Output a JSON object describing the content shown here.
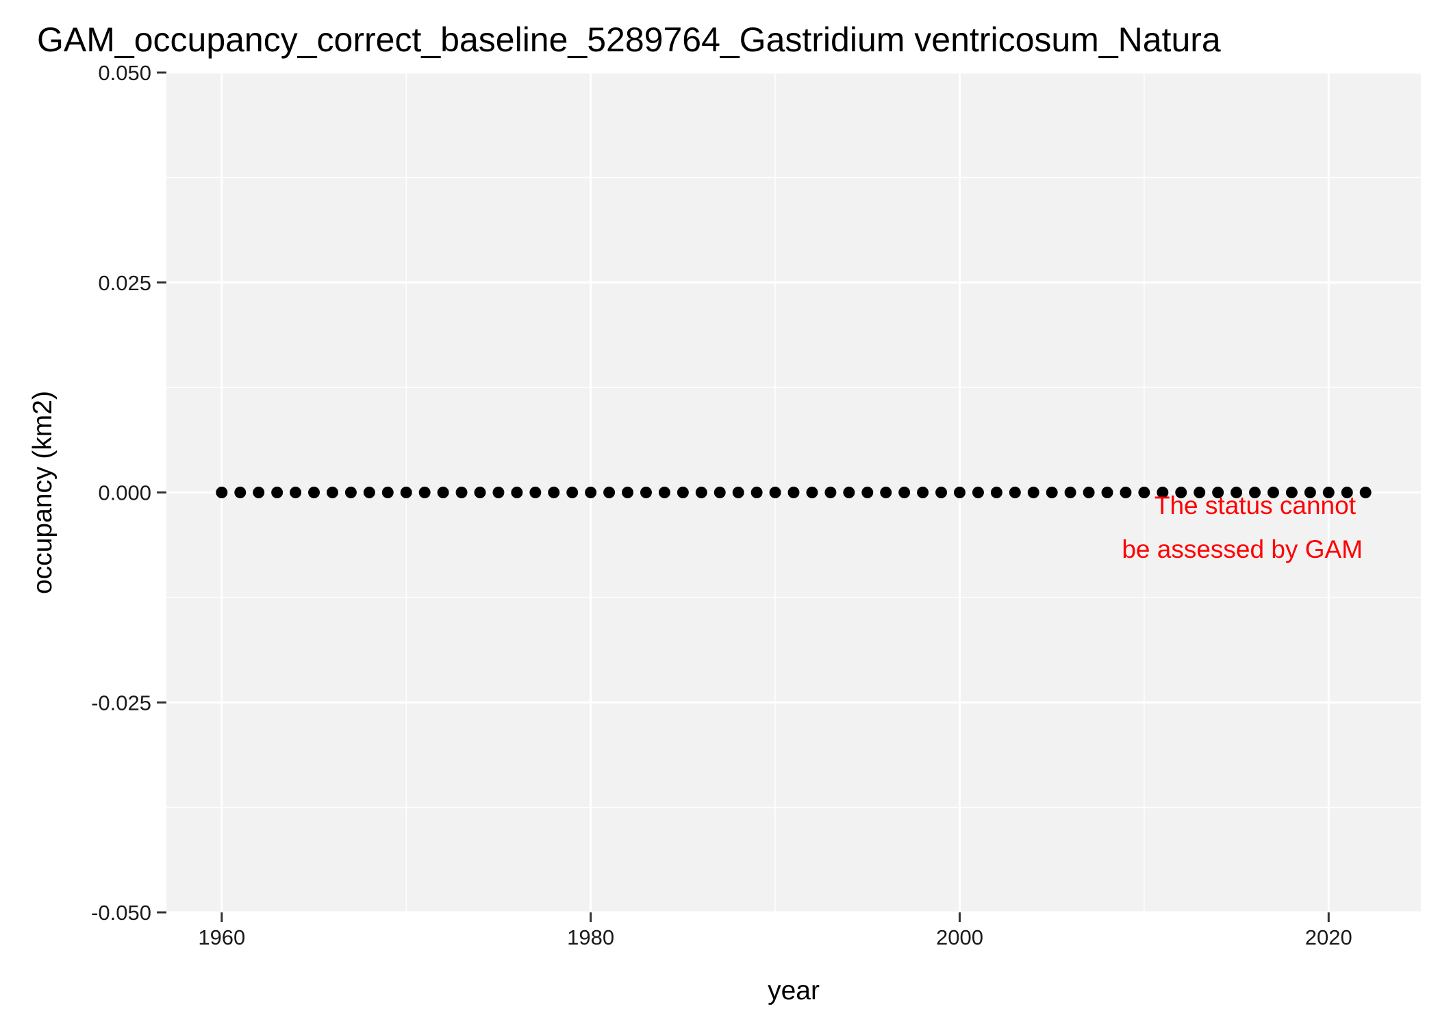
{
  "chart_data": {
    "type": "scatter",
    "title": "GAM_occupancy_correct_baseline_5289764_Gastridium ventricosum_Natura",
    "xlabel": "year",
    "ylabel": "occupancy (km2)",
    "xlim": [
      1957,
      2025
    ],
    "ylim": [
      -0.05,
      0.05
    ],
    "x_ticks": [
      1960,
      1980,
      2000,
      2020
    ],
    "x_tick_labels": [
      "1960",
      "1980",
      "2000",
      "2020"
    ],
    "y_ticks": [
      0.05,
      0.025,
      0.0,
      -0.025,
      -0.05
    ],
    "y_tick_labels": [
      "0.050",
      "0.025",
      "0.000",
      "-0.025",
      "-0.050"
    ],
    "grid": true,
    "point_color": "#000000",
    "annotation": {
      "lines": [
        "The status cannot",
        "be assessed by GAM"
      ],
      "color": "#ff0000"
    },
    "series": [
      {
        "x": [
          1960,
          1961,
          1962,
          1963,
          1964,
          1965,
          1966,
          1967,
          1968,
          1969,
          1970,
          1971,
          1972,
          1973,
          1974,
          1975,
          1976,
          1977,
          1978,
          1979,
          1980,
          1981,
          1982,
          1983,
          1984,
          1985,
          1986,
          1987,
          1988,
          1989,
          1990,
          1991,
          1992,
          1993,
          1994,
          1995,
          1996,
          1997,
          1998,
          1999,
          2000,
          2001,
          2002,
          2003,
          2004,
          2005,
          2006,
          2007,
          2008,
          2009,
          2010,
          2011,
          2012,
          2013,
          2014,
          2015,
          2016,
          2017,
          2018,
          2019,
          2020,
          2021,
          2022
        ],
        "values": [
          0,
          0,
          0,
          0,
          0,
          0,
          0,
          0,
          0,
          0,
          0,
          0,
          0,
          0,
          0,
          0,
          0,
          0,
          0,
          0,
          0,
          0,
          0,
          0,
          0,
          0,
          0,
          0,
          0,
          0,
          0,
          0,
          0,
          0,
          0,
          0,
          0,
          0,
          0,
          0,
          0,
          0,
          0,
          0,
          0,
          0,
          0,
          0,
          0,
          0,
          0,
          0,
          0,
          0,
          0,
          0,
          0,
          0,
          0,
          0,
          0,
          0,
          0
        ]
      }
    ]
  }
}
